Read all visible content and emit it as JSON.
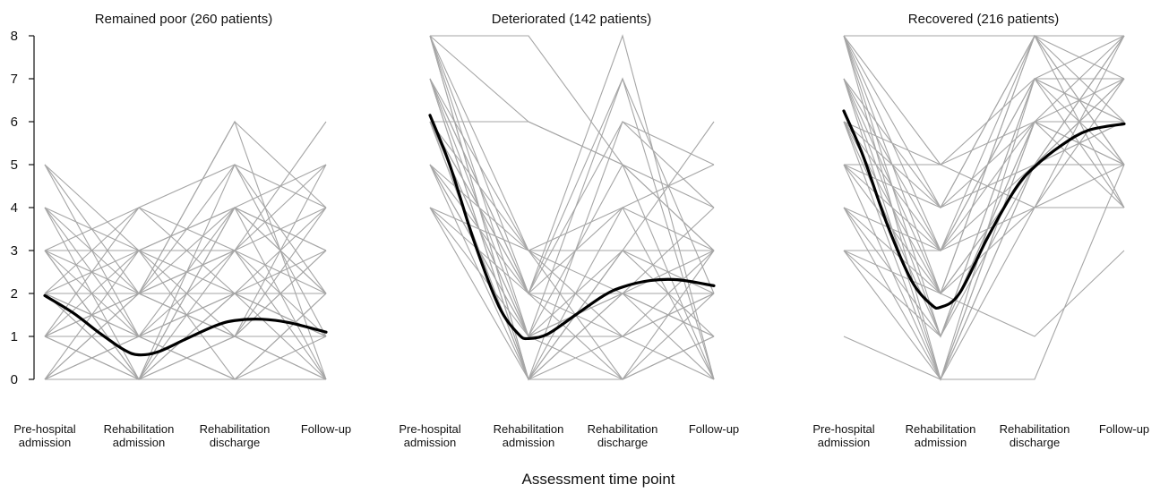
{
  "chart_data": {
    "type": "line",
    "xlabel": "Assessment time point",
    "ylim": [
      0,
      8
    ],
    "yticks": [
      0,
      1,
      2,
      3,
      4,
      5,
      6,
      7,
      8
    ],
    "categories": [
      [
        "Pre-hospital",
        "admission"
      ],
      [
        "Rehabilitation",
        "admission"
      ],
      [
        "Rehabilitation",
        "discharge"
      ],
      [
        "Follow-up"
      ]
    ],
    "line_color_individual": "#a6a6a6",
    "line_color_mean": "#000000",
    "panels": [
      {
        "title": "Remained poor (260 patients)",
        "mean_curve": [
          {
            "x": 0,
            "y": 1.95
          },
          {
            "x": 0.3,
            "y": 1.55
          },
          {
            "x": 0.6,
            "y": 1.05
          },
          {
            "x": 0.85,
            "y": 0.68
          },
          {
            "x": 1.0,
            "y": 0.57
          },
          {
            "x": 1.2,
            "y": 0.64
          },
          {
            "x": 1.5,
            "y": 0.95
          },
          {
            "x": 1.8,
            "y": 1.25
          },
          {
            "x": 2.0,
            "y": 1.37
          },
          {
            "x": 2.3,
            "y": 1.4
          },
          {
            "x": 2.6,
            "y": 1.32
          },
          {
            "x": 3.0,
            "y": 1.1
          }
        ],
        "individual_paths": [
          [
            5,
            3,
            2,
            1
          ],
          [
            5,
            2,
            1,
            0
          ],
          [
            4,
            2,
            3,
            5
          ],
          [
            4,
            3,
            4,
            2
          ],
          [
            4,
            1,
            0,
            1
          ],
          [
            3,
            0,
            4,
            2
          ],
          [
            3,
            4,
            2,
            0
          ],
          [
            3,
            2,
            6,
            4
          ],
          [
            3,
            1,
            3,
            0
          ],
          [
            2,
            0,
            1,
            3
          ],
          [
            2,
            4,
            5,
            1
          ],
          [
            2,
            3,
            0,
            2
          ],
          [
            2,
            1,
            2,
            4
          ],
          [
            2,
            2,
            4,
            3
          ],
          [
            2,
            0,
            3,
            6
          ],
          [
            1,
            2,
            1,
            5
          ],
          [
            1,
            0,
            5,
            4
          ],
          [
            1,
            3,
            4,
            0
          ],
          [
            1,
            1,
            0,
            2
          ],
          [
            0,
            2,
            3,
            1
          ],
          [
            0,
            1,
            2,
            3
          ],
          [
            0,
            0,
            4,
            5
          ],
          [
            0,
            3,
            1,
            4
          ],
          [
            0,
            2,
            6,
            0
          ],
          [
            1,
            4,
            3,
            2
          ],
          [
            3,
            0,
            0,
            0
          ],
          [
            0,
            1,
            1,
            1
          ],
          [
            2,
            2,
            2,
            2
          ],
          [
            4,
            0,
            2,
            1
          ],
          [
            5,
            1,
            4,
            3
          ],
          [
            1,
            2,
            5,
            2
          ],
          [
            3,
            3,
            3,
            4
          ],
          [
            0,
            0,
            1,
            0
          ],
          [
            2,
            1,
            1,
            3
          ],
          [
            1,
            0,
            2,
            1
          ]
        ]
      },
      {
        "title": "Deteriorated (142 patients)",
        "mean_curve": [
          {
            "x": 0,
            "y": 6.15
          },
          {
            "x": 0.2,
            "y": 5.0
          },
          {
            "x": 0.45,
            "y": 3.2
          },
          {
            "x": 0.7,
            "y": 1.7
          },
          {
            "x": 0.9,
            "y": 1.05
          },
          {
            "x": 1.0,
            "y": 0.95
          },
          {
            "x": 1.2,
            "y": 1.05
          },
          {
            "x": 1.5,
            "y": 1.5
          },
          {
            "x": 1.8,
            "y": 1.95
          },
          {
            "x": 2.0,
            "y": 2.15
          },
          {
            "x": 2.3,
            "y": 2.3
          },
          {
            "x": 2.6,
            "y": 2.32
          },
          {
            "x": 3.0,
            "y": 2.18
          }
        ],
        "individual_paths": [
          [
            8,
            3,
            3,
            3
          ],
          [
            8,
            2,
            8,
            0
          ],
          [
            8,
            6,
            5,
            0
          ],
          [
            8,
            0,
            2,
            4
          ],
          [
            7,
            1,
            7,
            2
          ],
          [
            7,
            3,
            0,
            1
          ],
          [
            7,
            0,
            6,
            5
          ],
          [
            6,
            6,
            5,
            3
          ],
          [
            6,
            2,
            1,
            2
          ],
          [
            6,
            0,
            4,
            0
          ],
          [
            6,
            1,
            3,
            6
          ],
          [
            6,
            3,
            2,
            1
          ],
          [
            5,
            2,
            0,
            3
          ],
          [
            5,
            0,
            2,
            2
          ],
          [
            5,
            1,
            5,
            4
          ],
          [
            4,
            0,
            3,
            1
          ],
          [
            4,
            2,
            7,
            0
          ],
          [
            4,
            1,
            1,
            2
          ],
          [
            8,
            8,
            5,
            3
          ],
          [
            7,
            2,
            4,
            3
          ],
          [
            6,
            0,
            0,
            1
          ],
          [
            5,
            3,
            4,
            5
          ],
          [
            8,
            1,
            2,
            1
          ],
          [
            7,
            0,
            3,
            2
          ],
          [
            6,
            2,
            6,
            4
          ],
          [
            4,
            3,
            1,
            0
          ],
          [
            5,
            1,
            0,
            2
          ],
          [
            8,
            0,
            1,
            3
          ],
          [
            6,
            1,
            2,
            0
          ],
          [
            7,
            2,
            2,
            3
          ]
        ]
      },
      {
        "title": "Recovered (216 patients)",
        "mean_curve": [
          {
            "x": 0,
            "y": 6.25
          },
          {
            "x": 0.2,
            "y": 5.2
          },
          {
            "x": 0.45,
            "y": 3.6
          },
          {
            "x": 0.7,
            "y": 2.3
          },
          {
            "x": 0.9,
            "y": 1.75
          },
          {
            "x": 1.0,
            "y": 1.68
          },
          {
            "x": 1.2,
            "y": 2.0
          },
          {
            "x": 1.5,
            "y": 3.3
          },
          {
            "x": 1.8,
            "y": 4.45
          },
          {
            "x": 2.0,
            "y": 4.95
          },
          {
            "x": 2.3,
            "y": 5.45
          },
          {
            "x": 2.6,
            "y": 5.8
          },
          {
            "x": 3.0,
            "y": 5.95
          }
        ],
        "individual_paths": [
          [
            8,
            3,
            8,
            4
          ],
          [
            8,
            5,
            7,
            6
          ],
          [
            8,
            0,
            6,
            8
          ],
          [
            8,
            2,
            5,
            5
          ],
          [
            8,
            4,
            8,
            7
          ],
          [
            7,
            1,
            7,
            8
          ],
          [
            7,
            4,
            6,
            5
          ],
          [
            7,
            0,
            5,
            7
          ],
          [
            6,
            2,
            8,
            6
          ],
          [
            6,
            5,
            4,
            7
          ],
          [
            6,
            1,
            7,
            4
          ],
          [
            6,
            3,
            5,
            8
          ],
          [
            5,
            0,
            6,
            6
          ],
          [
            5,
            2,
            4,
            5
          ],
          [
            5,
            4,
            8,
            5
          ],
          [
            4,
            1,
            5,
            7
          ],
          [
            4,
            3,
            6,
            4
          ],
          [
            4,
            0,
            7,
            6
          ],
          [
            3,
            2,
            8,
            5
          ],
          [
            3,
            0,
            4,
            8
          ],
          [
            3,
            1,
            6,
            7
          ],
          [
            1,
            0,
            5,
            6
          ],
          [
            8,
            8,
            8,
            8
          ],
          [
            7,
            2,
            1,
            3
          ],
          [
            6,
            0,
            0,
            5
          ],
          [
            5,
            3,
            7,
            5
          ],
          [
            4,
            2,
            5,
            6
          ],
          [
            3,
            3,
            4,
            4
          ],
          [
            8,
            1,
            6,
            5
          ],
          [
            6,
            4,
            5,
            8
          ],
          [
            7,
            3,
            7,
            7
          ],
          [
            5,
            5,
            6,
            6
          ]
        ]
      }
    ]
  }
}
